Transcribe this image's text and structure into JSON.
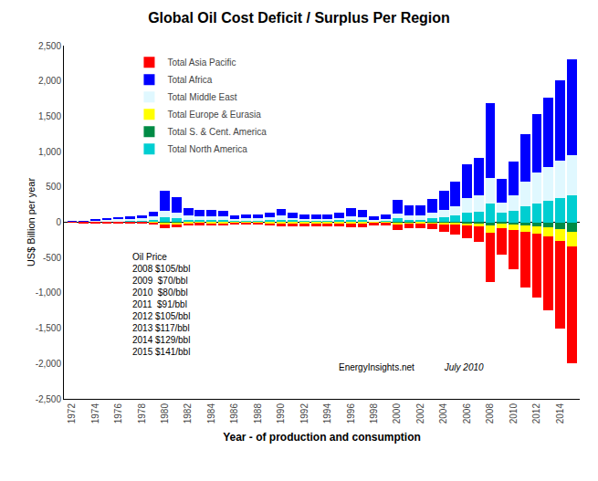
{
  "chart_data": {
    "type": "bar",
    "title": "Global Oil Cost Deficit / Surplus Per Region",
    "xlabel": "Year - of production and consumption",
    "ylabel": "US$ Billion per year",
    "x": [
      1972,
      1973,
      1974,
      1975,
      1976,
      1977,
      1978,
      1979,
      1980,
      1981,
      1982,
      1983,
      1984,
      1985,
      1986,
      1987,
      1988,
      1989,
      1990,
      1991,
      1992,
      1993,
      1994,
      1995,
      1996,
      1997,
      1998,
      1999,
      2000,
      2001,
      2002,
      2003,
      2004,
      2005,
      2006,
      2007,
      2008,
      2009,
      2010,
      2011,
      2012,
      2013,
      2014,
      2015
    ],
    "series": [
      {
        "name": "Total Asia Pacific",
        "color": "#FF0000",
        "values": [
          -3,
          -4,
          -8,
          -8,
          -10,
          -12,
          -12,
          -18,
          -50,
          -40,
          -30,
          -25,
          -28,
          -30,
          -15,
          -20,
          -25,
          -30,
          -40,
          -40,
          -42,
          -40,
          -40,
          -45,
          -50,
          -55,
          -30,
          -35,
          -80,
          -65,
          -60,
          -80,
          -110,
          -140,
          -180,
          -220,
          -700,
          -380,
          -550,
          -780,
          -900,
          -1050,
          -1250,
          -1650
        ]
      },
      {
        "name": "Total Africa",
        "color": "#0000FF",
        "values": [
          3,
          5,
          20,
          22,
          28,
          35,
          38,
          55,
          280,
          220,
          110,
          90,
          90,
          85,
          50,
          60,
          55,
          65,
          100,
          80,
          65,
          65,
          65,
          75,
          110,
          95,
          50,
          65,
          200,
          140,
          150,
          200,
          270,
          340,
          480,
          530,
          1050,
          340,
          470,
          680,
          830,
          980,
          1130,
          1350
        ]
      },
      {
        "name": "Total Middle East",
        "color": "#E0F8FF",
        "values": [
          2,
          4,
          15,
          18,
          22,
          28,
          38,
          50,
          100,
          80,
          55,
          48,
          48,
          48,
          28,
          32,
          32,
          40,
          55,
          35,
          28,
          28,
          28,
          35,
          48,
          42,
          20,
          28,
          70,
          55,
          55,
          78,
          105,
          140,
          210,
          240,
          370,
          150,
          220,
          340,
          430,
          480,
          530,
          570
        ]
      },
      {
        "name": "Total Europe & Eurasia",
        "color": "#FFFF00",
        "values": [
          -1,
          -2,
          -3,
          -3,
          -3,
          -3,
          -3,
          -6,
          -18,
          -18,
          -12,
          -9,
          -9,
          -9,
          -5,
          -6,
          -6,
          -9,
          -12,
          -9,
          -9,
          -9,
          -9,
          -9,
          -12,
          -12,
          -6,
          -6,
          -18,
          -15,
          -12,
          -15,
          -18,
          -25,
          -30,
          -38,
          -100,
          -55,
          -75,
          -90,
          -100,
          -120,
          -160,
          -210
        ]
      },
      {
        "name": "Total S. & Cent. America",
        "color": "#008B45",
        "values": [
          -1,
          -1,
          -3,
          -3,
          -3,
          -3,
          -3,
          -5,
          -12,
          -9,
          -6,
          -5,
          -5,
          -5,
          -3,
          -3,
          -3,
          -5,
          -6,
          -5,
          -5,
          -5,
          -5,
          -5,
          -6,
          -6,
          -3,
          -3,
          -9,
          -7,
          -6,
          -7,
          -9,
          -12,
          -15,
          -18,
          -50,
          -25,
          -38,
          -50,
          -60,
          -75,
          -100,
          -130
        ]
      },
      {
        "name": "Total North America",
        "color": "#00CED1",
        "values": [
          3,
          5,
          12,
          15,
          18,
          22,
          25,
          38,
          65,
          52,
          38,
          32,
          32,
          32,
          18,
          22,
          22,
          26,
          38,
          26,
          22,
          22,
          22,
          26,
          36,
          32,
          16,
          20,
          52,
          38,
          38,
          52,
          72,
          92,
          130,
          145,
          260,
          130,
          165,
          230,
          270,
          305,
          345,
          380
        ]
      }
    ],
    "stacked": true,
    "xlim": [
      1971.3,
      2015.7
    ],
    "xticks": [
      1972,
      1974,
      1976,
      1978,
      1980,
      1982,
      1984,
      1986,
      1988,
      1990,
      1992,
      1994,
      1996,
      1998,
      2000,
      2002,
      2004,
      2006,
      2008,
      2010,
      2012,
      2014
    ],
    "ylim": [
      -2500,
      2500
    ],
    "yticks": [
      {
        "value": -2500,
        "label": "-2,500"
      },
      {
        "value": -2000,
        "label": "-2,000"
      },
      {
        "value": -1500,
        "label": "-1,500"
      },
      {
        "value": -1000,
        "label": "-1,000"
      },
      -500,
      0,
      500,
      {
        "value": 1000,
        "label": "1,000"
      },
      {
        "value": 1500,
        "label": "1,500"
      },
      {
        "value": 2000,
        "label": "2,000"
      },
      {
        "value": 2500,
        "label": "2,500"
      }
    ],
    "grid": false,
    "legend": "upper left",
    "annotations": [
      "Oil Price\n2008 $105/bbl\n2009  $70/bbl\n2010  $80/bbl\n2011  $91/bbl\n2012 $105/bbl\n2013 $117/bbl\n2014 $129/bbl\n2015 $141/bbl",
      "EnergyInsights.net",
      " July 2010"
    ]
  }
}
